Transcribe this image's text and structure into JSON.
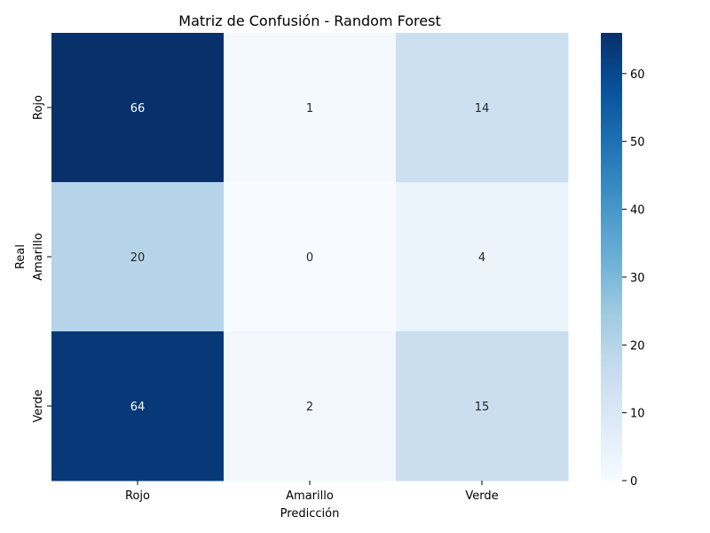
{
  "chart_data": {
    "type": "heatmap",
    "title": "Matriz de Confusión - Random Forest",
    "xlabel": "Predicción",
    "ylabel": "Real",
    "x_categories": [
      "Rojo",
      "Amarillo",
      "Verde"
    ],
    "y_categories": [
      "Rojo",
      "Amarillo",
      "Verde"
    ],
    "values": [
      [
        66,
        1,
        14
      ],
      [
        20,
        0,
        4
      ],
      [
        64,
        2,
        15
      ]
    ],
    "colormap": "Blues",
    "colorbar": {
      "range": [
        0,
        66
      ],
      "ticks": [
        0,
        10,
        20,
        30,
        40,
        50,
        60
      ]
    },
    "colors": {
      "light": "#f7fbff",
      "dark": "#08306b"
    }
  }
}
